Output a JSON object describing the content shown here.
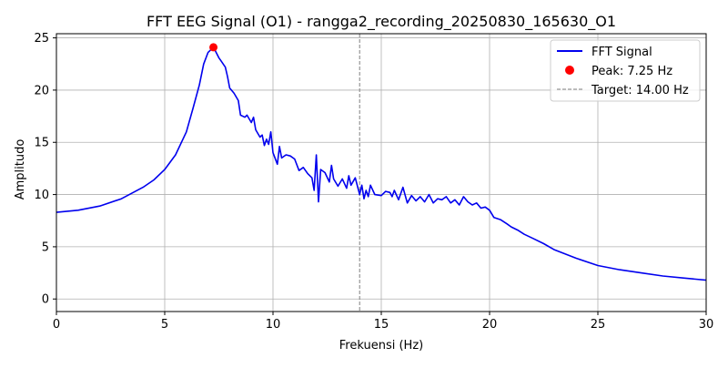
{
  "chart_data": {
    "type": "line",
    "title": "FFT EEG Signal (O1) - rangga2_recording_20250830_165630_O1",
    "xlabel": "Frekuensi (Hz)",
    "ylabel": "Amplitudo",
    "xlim": [
      0,
      30
    ],
    "ylim": [
      -1.2,
      25.4
    ],
    "xticks": [
      0,
      5,
      10,
      15,
      20,
      25,
      30
    ],
    "yticks": [
      0,
      5,
      10,
      15,
      20,
      25
    ],
    "grid": true,
    "legend_position": "top-right",
    "legend": [
      "FFT Signal",
      "Peak: 7.25 Hz",
      "Target: 14.00 Hz"
    ],
    "series": [
      {
        "name": "FFT Signal",
        "color": "#0000ee",
        "x": [
          0,
          1,
          2,
          3,
          4,
          4.5,
          5,
          5.5,
          6,
          6.3,
          6.6,
          6.8,
          7.0,
          7.25,
          7.5,
          7.6,
          7.8,
          7.9,
          8.0,
          8.2,
          8.4,
          8.5,
          8.7,
          8.8,
          9.0,
          9.1,
          9.2,
          9.4,
          9.5,
          9.6,
          9.7,
          9.8,
          9.9,
          10.0,
          10.2,
          10.3,
          10.4,
          10.6,
          10.8,
          11.0,
          11.2,
          11.4,
          11.6,
          11.8,
          11.9,
          12.0,
          12.1,
          12.2,
          12.4,
          12.6,
          12.7,
          12.8,
          13.0,
          13.2,
          13.4,
          13.5,
          13.6,
          13.8,
          14.0,
          14.1,
          14.2,
          14.3,
          14.4,
          14.5,
          14.7,
          15.0,
          15.2,
          15.4,
          15.5,
          15.6,
          15.8,
          16.0,
          16.2,
          16.4,
          16.6,
          16.8,
          17.0,
          17.2,
          17.4,
          17.6,
          17.8,
          18.0,
          18.2,
          18.4,
          18.6,
          18.8,
          19.0,
          19.2,
          19.4,
          19.6,
          19.8,
          20.0,
          20.2,
          20.5,
          20.8,
          21.0,
          21.3,
          21.6,
          22.0,
          22.5,
          23,
          24,
          25,
          26,
          27,
          28,
          29,
          30
        ],
        "y": [
          8.3,
          8.5,
          8.9,
          9.6,
          10.7,
          11.4,
          12.4,
          13.8,
          16.0,
          18.2,
          20.5,
          22.5,
          23.6,
          24.1,
          23.1,
          22.8,
          22.2,
          21.3,
          20.2,
          19.7,
          19.0,
          17.6,
          17.4,
          17.6,
          16.9,
          17.4,
          16.2,
          15.5,
          15.7,
          14.7,
          15.3,
          14.8,
          16.0,
          14.0,
          12.9,
          14.6,
          13.5,
          13.8,
          13.7,
          13.4,
          12.3,
          12.6,
          12.0,
          11.6,
          10.4,
          13.8,
          9.3,
          12.4,
          12.1,
          11.2,
          12.8,
          11.5,
          10.8,
          11.5,
          10.6,
          11.8,
          10.9,
          11.6,
          10.0,
          10.9,
          9.6,
          10.4,
          9.8,
          10.9,
          10.0,
          9.9,
          10.3,
          10.2,
          9.8,
          10.4,
          9.5,
          10.7,
          9.2,
          9.9,
          9.4,
          9.8,
          9.3,
          10.0,
          9.2,
          9.6,
          9.5,
          9.8,
          9.2,
          9.5,
          9.0,
          9.8,
          9.3,
          9.0,
          9.2,
          8.7,
          8.8,
          8.5,
          7.8,
          7.6,
          7.2,
          6.9,
          6.6,
          6.2,
          5.8,
          5.3,
          4.7,
          3.9,
          3.2,
          2.8,
          2.5,
          2.2,
          2.0,
          1.8
        ]
      }
    ],
    "peak": {
      "label": "Peak: 7.25 Hz",
      "x": 7.25,
      "y": 24.1,
      "color": "#ff0000"
    },
    "target": {
      "label": "Target: 14.00 Hz",
      "x": 14.0,
      "color": "#808080"
    }
  }
}
